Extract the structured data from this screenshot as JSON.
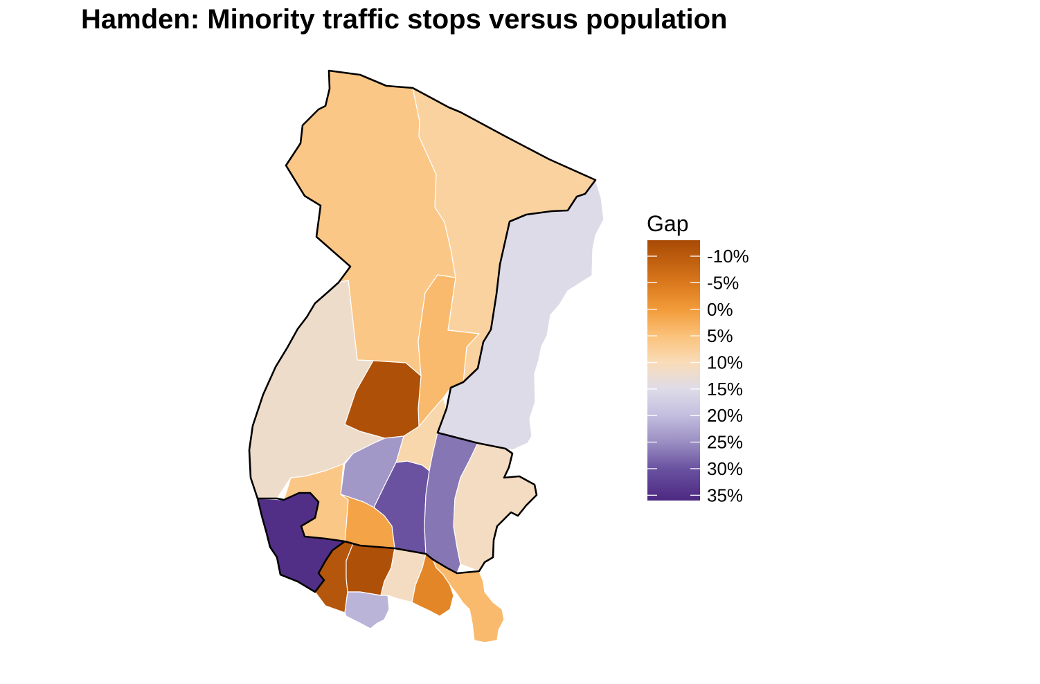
{
  "title": "Hamden: Minority traffic stops versus population",
  "legend": {
    "title": "Gap",
    "ticks": [
      "-10%",
      "-5%",
      "0%",
      "5%",
      "10%",
      "15%",
      "20%",
      "25%",
      "30%",
      "35%"
    ],
    "tick_values": [
      -10,
      -5,
      0,
      5,
      10,
      15,
      20,
      25,
      30,
      35
    ],
    "range": [
      -13,
      36
    ],
    "gradient": [
      {
        "value": -13,
        "color": "#a84a05"
      },
      {
        "value": -5,
        "color": "#d9781c"
      },
      {
        "value": 0,
        "color": "#f29b3a"
      },
      {
        "value": 5,
        "color": "#fbc27a"
      },
      {
        "value": 10,
        "color": "#f9dcb8"
      },
      {
        "value": 15,
        "color": "#dedbe8"
      },
      {
        "value": 20,
        "color": "#c3bedf"
      },
      {
        "value": 25,
        "color": "#9a8ec2"
      },
      {
        "value": 30,
        "color": "#6a52a0"
      },
      {
        "value": 36,
        "color": "#4d2882"
      }
    ]
  },
  "regions": [
    {
      "name": "tract-north-west",
      "gap": 6
    },
    {
      "name": "tract-north-east",
      "gap": 8
    },
    {
      "name": "tract-east",
      "gap": 15
    },
    {
      "name": "tract-west",
      "gap": 12
    },
    {
      "name": "tract-central-narrow",
      "gap": 4
    },
    {
      "name": "tract-central-rust",
      "gap": -12
    },
    {
      "name": "tract-center-small",
      "gap": 9
    },
    {
      "name": "tract-lilac",
      "gap": 24
    },
    {
      "name": "tract-purple-mid",
      "gap": 30
    },
    {
      "name": "tract-purple-right",
      "gap": 27
    },
    {
      "name": "tract-southeast",
      "gap": 11
    },
    {
      "name": "tract-southwest-light",
      "gap": 6
    },
    {
      "name": "tract-orange-south",
      "gap": 1
    },
    {
      "name": "tract-deep-purple",
      "gap": 35
    },
    {
      "name": "tract-rust-sw",
      "gap": -11
    },
    {
      "name": "tract-rust-s",
      "gap": -12
    },
    {
      "name": "tract-beige-s",
      "gap": 11
    },
    {
      "name": "tract-lavender-s",
      "gap": 21
    },
    {
      "name": "tract-orange-se",
      "gap": -3
    },
    {
      "name": "tract-peach-se",
      "gap": 4
    }
  ]
}
